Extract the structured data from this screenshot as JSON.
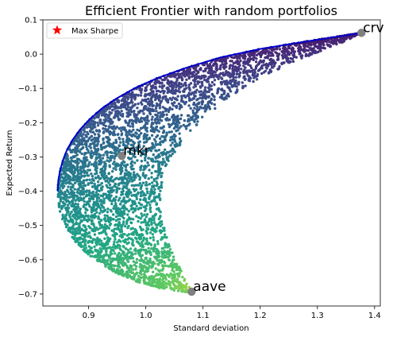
{
  "chart_data": {
    "type": "scatter",
    "title": "Efficient Frontier with random portfolios",
    "xlabel": "Standard deviation",
    "ylabel": "Expected Return",
    "xlim": [
      0.82,
      1.41
    ],
    "ylim": [
      -0.735,
      0.1
    ],
    "x_ticks": [
      "0.9",
      "1.0",
      "1.1",
      "1.2",
      "1.3",
      "1.4"
    ],
    "x_tick_values": [
      0.9,
      1.0,
      1.1,
      1.2,
      1.3,
      1.4
    ],
    "y_ticks": [
      "0.1",
      "0.0",
      "−0.1",
      "−0.2",
      "−0.3",
      "−0.4",
      "−0.5",
      "−0.6",
      "−0.7"
    ],
    "y_tick_values": [
      0.1,
      0.0,
      -0.1,
      -0.2,
      -0.3,
      -0.4,
      -0.5,
      -0.6,
      -0.7
    ],
    "grid": false,
    "legend": {
      "position": "top-left",
      "entries": [
        {
          "label": "Max Sharpe",
          "marker": "star",
          "color": "#ff0000"
        }
      ]
    },
    "colormap": "viridis_r",
    "assets": [
      {
        "label": "crv",
        "x": 1.377,
        "y": 0.062
      },
      {
        "label": "mkr",
        "x": 0.958,
        "y": -0.297
      },
      {
        "label": "aave",
        "x": 1.08,
        "y": -0.693
      }
    ],
    "frontier": {
      "color": "#0000cc",
      "points": [
        [
          0.846,
          -0.4
        ],
        [
          0.847,
          -0.37
        ],
        [
          0.85,
          -0.34
        ],
        [
          0.855,
          -0.31
        ],
        [
          0.862,
          -0.28
        ],
        [
          0.872,
          -0.25
        ],
        [
          0.885,
          -0.22
        ],
        [
          0.902,
          -0.19
        ],
        [
          0.922,
          -0.16
        ],
        [
          0.948,
          -0.13
        ],
        [
          0.98,
          -0.1
        ],
        [
          1.02,
          -0.07
        ],
        [
          1.07,
          -0.04
        ],
        [
          1.13,
          -0.01
        ],
        [
          1.2,
          0.015
        ],
        [
          1.28,
          0.037
        ],
        [
          1.33,
          0.05
        ],
        [
          1.377,
          0.062
        ]
      ]
    },
    "cloud": {
      "outer_left": [
        [
          0.846,
          -0.4
        ],
        [
          0.847,
          -0.43
        ],
        [
          0.85,
          -0.46
        ],
        [
          0.856,
          -0.49
        ],
        [
          0.865,
          -0.52
        ],
        [
          0.878,
          -0.55
        ],
        [
          0.896,
          -0.58
        ],
        [
          0.92,
          -0.61
        ],
        [
          0.95,
          -0.64
        ],
        [
          0.985,
          -0.665
        ],
        [
          1.03,
          -0.685
        ],
        [
          1.075,
          -0.695
        ]
      ],
      "inner_right": [
        [
          1.377,
          0.062
        ],
        [
          1.345,
          0.035
        ],
        [
          1.3,
          0.005
        ],
        [
          1.25,
          -0.03
        ],
        [
          1.2,
          -0.07
        ],
        [
          1.15,
          -0.12
        ],
        [
          1.105,
          -0.18
        ],
        [
          1.07,
          -0.24
        ],
        [
          1.045,
          -0.3
        ],
        [
          1.03,
          -0.36
        ],
        [
          1.025,
          -0.42
        ],
        [
          1.028,
          -0.48
        ],
        [
          1.038,
          -0.54
        ],
        [
          1.052,
          -0.6
        ],
        [
          1.068,
          -0.65
        ],
        [
          1.08,
          -0.692
        ]
      ],
      "n_points": 4500
    }
  }
}
